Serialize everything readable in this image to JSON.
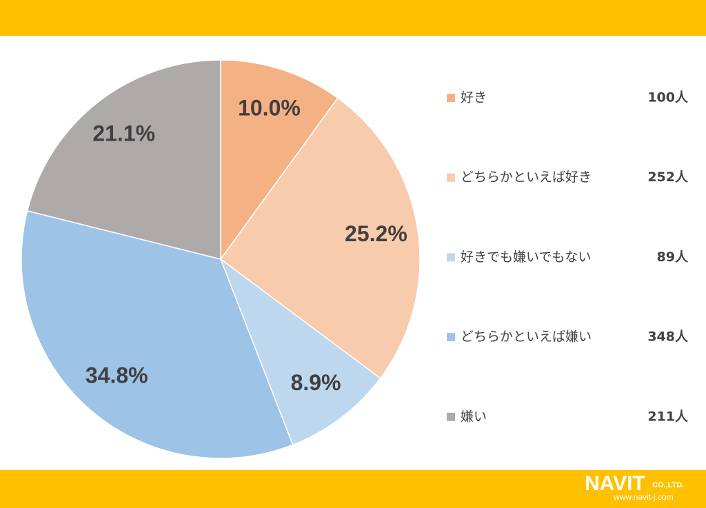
{
  "chart_data": {
    "type": "pie",
    "categories": [
      "好き",
      "どちらかといえば好き",
      "好きでも嫌いでもない",
      "どちらかといえば嫌い",
      "嫌い"
    ],
    "values": [
      10.0,
      25.2,
      8.9,
      34.8,
      21.1
    ],
    "value_labels": [
      "10.0%",
      "25.2%",
      "8.9%",
      "34.8%",
      "21.1%"
    ],
    "colors": [
      "#F4B183",
      "#F8CBAD",
      "#BDD7EE",
      "#9DC3E6",
      "#AEAAAA"
    ],
    "legend_counts": [
      "100人",
      "252人",
      "89人",
      "348人",
      "211人"
    ],
    "legend": "right"
  },
  "logo": {
    "name": "NAVIT",
    "suffix": "CO.,LTD.",
    "url": "www.navit-j.com"
  }
}
